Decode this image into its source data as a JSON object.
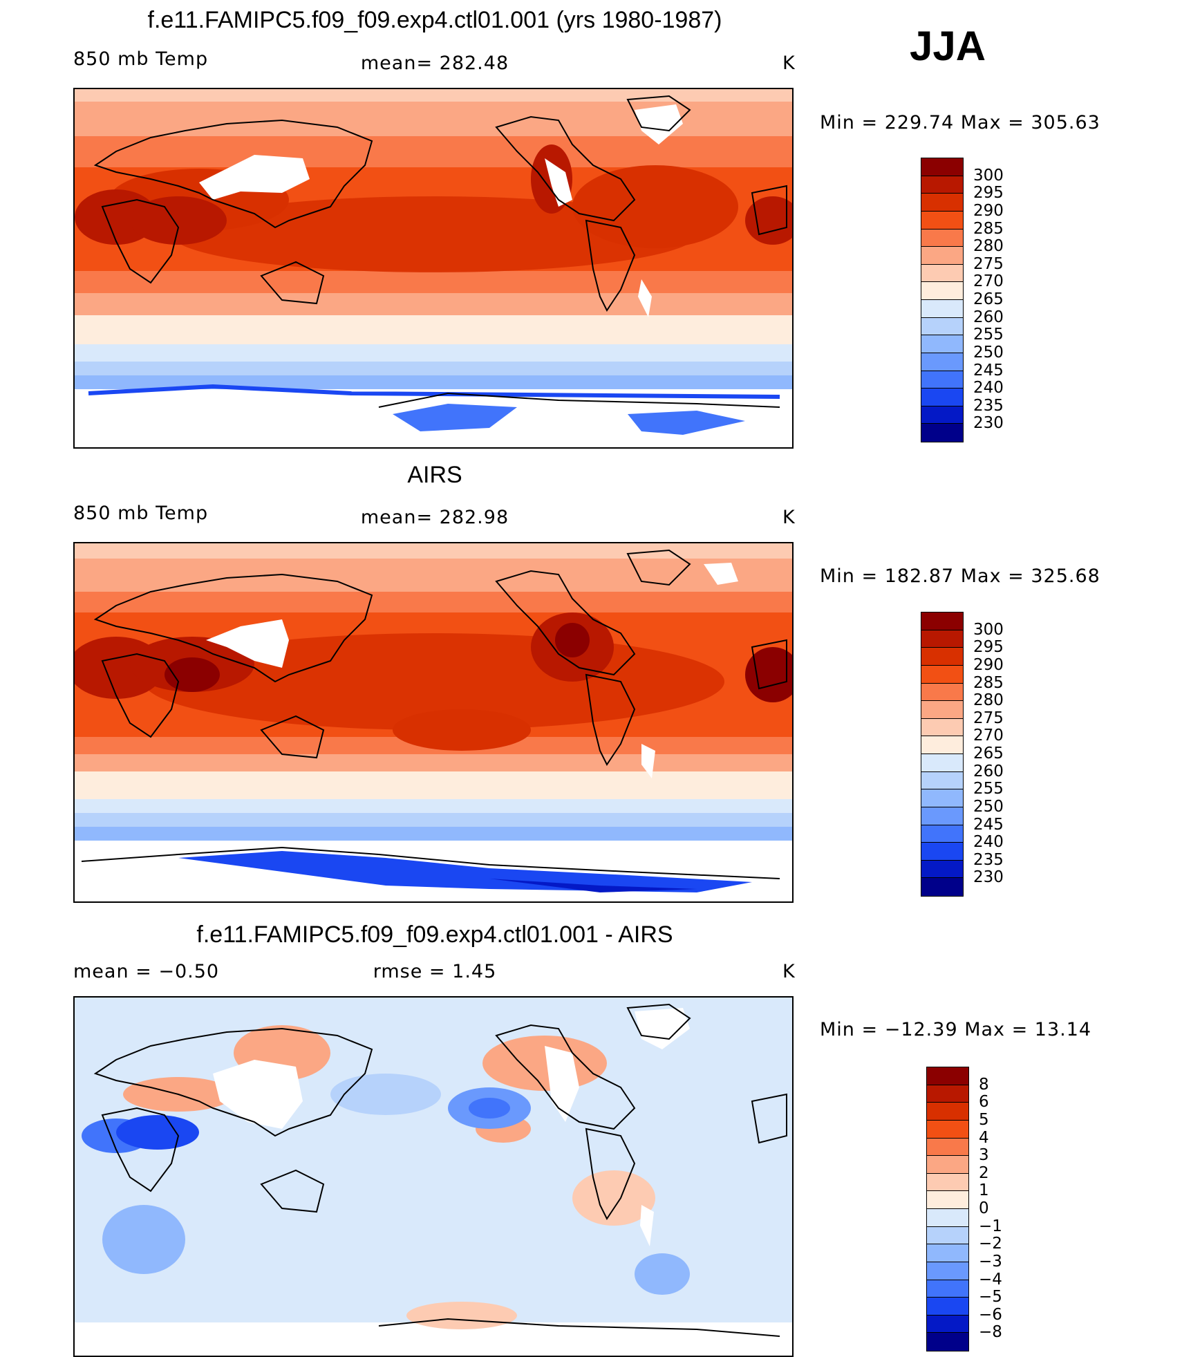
{
  "season": "JJA",
  "colors": {
    "temp": [
      "#8b0000",
      "#b81800",
      "#d83000",
      "#f25014",
      "#f9794a",
      "#fba784",
      "#fdcbb2",
      "#feeddd",
      "#d9e9fb",
      "#b6d2fb",
      "#90b8fd",
      "#6a99fd",
      "#4174fb",
      "#1a47f2",
      "#0419c6",
      "#00008a"
    ],
    "diff": [
      "#8b0000",
      "#b81800",
      "#d83000",
      "#f25014",
      "#f9794a",
      "#fba784",
      "#fdcbb2",
      "#feeddd",
      "#d9e9fb",
      "#b6d2fb",
      "#90b8fd",
      "#6a99fd",
      "#4174fb",
      "#1a47f2",
      "#0419c6",
      "#00008a"
    ]
  },
  "panels": [
    {
      "id": "model",
      "title": "f.e11.FAMIPC5.f09_f09.exp4.ctl01.001 (yrs 1980-1987)",
      "left_label": "850 mb Temp",
      "center_label": "mean= 282.48",
      "units": "K",
      "minmax": "Min = 229.74 Max = 305.63",
      "ticks": [
        "300",
        "295",
        "290",
        "285",
        "280",
        "275",
        "270",
        "265",
        "260",
        "255",
        "250",
        "245",
        "240",
        "235",
        "230"
      ]
    },
    {
      "id": "obs",
      "title": "AIRS",
      "left_label": "850 mb Temp",
      "center_label": "mean= 282.98",
      "units": "K",
      "minmax": "Min = 182.87 Max = 325.68",
      "ticks": [
        "300",
        "295",
        "290",
        "285",
        "280",
        "275",
        "270",
        "265",
        "260",
        "255",
        "250",
        "245",
        "240",
        "235",
        "230"
      ]
    },
    {
      "id": "diff",
      "title": "f.e11.FAMIPC5.f09_f09.exp4.ctl01.001 - AIRS",
      "left_label": "mean =   −0.50",
      "center_label": "rmse =     1.45",
      "units": "K",
      "minmax": "Min = −12.39 Max =   13.14",
      "ticks": [
        "8",
        "6",
        "5",
        "4",
        "3",
        "2",
        "1",
        "0",
        "−1",
        "−2",
        "−3",
        "−4",
        "−5",
        "−6",
        "−8"
      ]
    }
  ]
}
